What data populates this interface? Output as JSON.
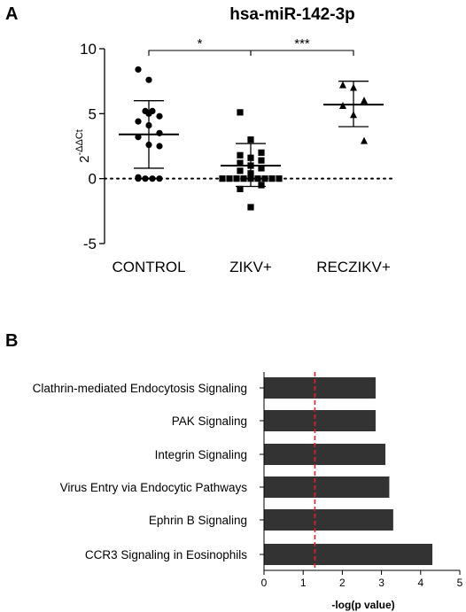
{
  "panels": {
    "a_label": "A",
    "b_label": "B"
  },
  "chart_data": [
    {
      "panel": "A",
      "type": "scatter",
      "title": "hsa-miR-142-3p",
      "ylabel_base": "2",
      "ylabel_exponent": "-ΔΔCt",
      "ylim": [
        -5,
        10
      ],
      "yticks": [
        -5,
        0,
        5,
        10
      ],
      "reference_line": 0,
      "categories": [
        "CONTROL",
        "ZIKV+",
        "RECZIKV+"
      ],
      "series": [
        {
          "category": "CONTROL",
          "marker": "circle",
          "mean": 3.4,
          "sd_low": 0.8,
          "sd_high": 6.0,
          "points": [
            8.4,
            7.6,
            5.2,
            5.2,
            5.0,
            4.8,
            4.4,
            4.1,
            3.5,
            3.2,
            2.6,
            2.5,
            0.1,
            0.0,
            0.0,
            0.0,
            0.0
          ]
        },
        {
          "category": "ZIKV+",
          "marker": "square",
          "mean": 1.0,
          "sd_low": -0.6,
          "sd_high": 2.7,
          "points": [
            5.1,
            3.0,
            2.0,
            1.8,
            1.6,
            1.4,
            1.2,
            1.0,
            0.8,
            0.6,
            0.4,
            0.0,
            0.0,
            0.0,
            0.0,
            0.0,
            0.0,
            0.0,
            0.0,
            0.0,
            -0.5,
            -0.8,
            -2.2
          ]
        },
        {
          "category": "RECZIKV+",
          "marker": "triangle",
          "mean": 5.7,
          "sd_low": 4.0,
          "sd_high": 7.5,
          "points": [
            7.2,
            7.0,
            6.0,
            5.6,
            4.9,
            2.9
          ]
        }
      ],
      "significance": [
        {
          "from": "CONTROL",
          "to": "ZIKV+",
          "label": "*"
        },
        {
          "from": "ZIKV+",
          "to": "RECZIKV+",
          "label": "***"
        }
      ]
    },
    {
      "panel": "B",
      "type": "bar",
      "orientation": "horizontal",
      "categories": [
        "Clathrin-mediated Endocytosis Signaling",
        "PAK Signaling",
        "Integrin Signaling",
        "Virus Entry via Endocytic Pathways",
        "Ephrin B Signaling",
        "CCR3 Signaling in Eosinophils"
      ],
      "values": [
        2.85,
        2.85,
        3.1,
        3.2,
        3.3,
        4.3
      ],
      "xlabel": "-log(p value)",
      "xlim": [
        0,
        5
      ],
      "xticks": [
        0,
        1,
        2,
        3,
        4,
        5
      ],
      "threshold": 1.3,
      "colors": {
        "bar": "#333333",
        "threshold": "#e0201b"
      }
    }
  ]
}
